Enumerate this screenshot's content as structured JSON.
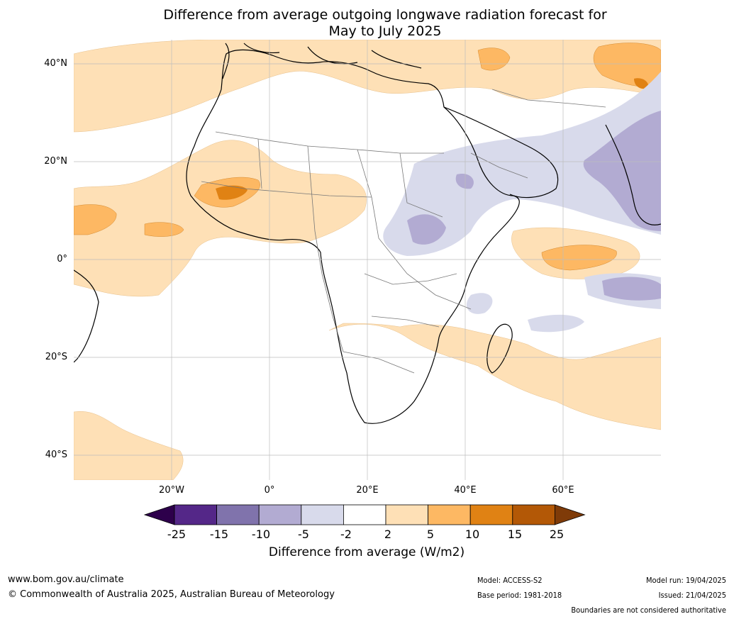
{
  "title_line1": "Difference from average outgoing longwave radiation forecast for",
  "title_line2": "May to July 2025",
  "lat_labels": [
    "40°N",
    "20°N",
    "0°",
    "20°S",
    "40°S"
  ],
  "lon_labels": [
    "20°W",
    "0°",
    "20°E",
    "40°E",
    "60°E"
  ],
  "colorbar": {
    "title": "Difference from average (W/m2)",
    "tick_labels": [
      "-25",
      "-15",
      "-10",
      "-5",
      "-2",
      "2",
      "5",
      "10",
      "15",
      "25"
    ],
    "bins": [
      {
        "range": "<-25",
        "color": "#2d004b"
      },
      {
        "range": "-25 to -15",
        "color": "#542788"
      },
      {
        "range": "-15 to -10",
        "color": "#8073ac"
      },
      {
        "range": "-10 to -5",
        "color": "#b2abd2"
      },
      {
        "range": "-5 to -2",
        "color": "#d8daeb"
      },
      {
        "range": "-2 to 2",
        "color": "#ffffff"
      },
      {
        "range": "2 to 5",
        "color": "#fee0b6"
      },
      {
        "range": "5 to 10",
        "color": "#fdb863"
      },
      {
        "range": "10 to 15",
        "color": "#e08214"
      },
      {
        "range": "15 to 25",
        "color": "#b35806"
      },
      {
        "range": ">25",
        "color": "#7f3b08"
      }
    ]
  },
  "footer": {
    "website": "www.bom.gov.au/climate",
    "copyright": "© Commonwealth of Australia 2025, Australian Bureau of Meteorology",
    "model": "Model: ACCESS-S2",
    "base_period": "Base period: 1981-2018",
    "model_run": "Model run: 19/04/2025",
    "issued": "Issued: 21/04/2025",
    "disclaimer": "Boundaries are not considered authoritative"
  }
}
